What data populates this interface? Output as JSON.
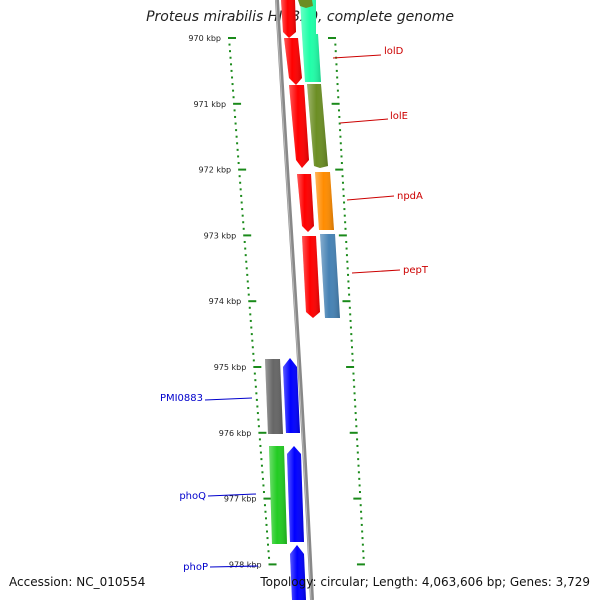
{
  "title": "Proteus mirabilis HI4320, complete genome",
  "footer": {
    "accession": "Accession: NC_010554",
    "topology": "Topology: circular; Length: 4,063,606 bp; Genes: 3,729"
  },
  "colors": {
    "tick": "#1a8a1a",
    "backbone": "#888888",
    "lolD": "#1fffa8",
    "lolE": "#6b8e23",
    "red": "#ff0000",
    "npdA": "#ff8c00",
    "pepT": "#4682b4",
    "PMI0883": "#666666",
    "phoQ": "#22cc22",
    "phoP": "#0000ff",
    "labelRed": "#cc0000",
    "labelBlue": "#0000cc"
  },
  "ticks": {
    "unit": "kbp",
    "major": [
      "970 kbp",
      "971 kbp",
      "972 kbp",
      "973 kbp",
      "974 kbp",
      "975 kbp",
      "976 kbp",
      "977 kbp",
      "978 kbp"
    ]
  },
  "gene_labels": [
    {
      "name": "lolD",
      "side": "right",
      "color": "labelRed"
    },
    {
      "name": "lolE",
      "side": "right",
      "color": "labelRed"
    },
    {
      "name": "npdA",
      "side": "right",
      "color": "labelRed"
    },
    {
      "name": "pepT",
      "side": "right",
      "color": "labelRed"
    },
    {
      "name": "PMI0883",
      "side": "left",
      "color": "labelBlue"
    },
    {
      "name": "phoQ",
      "side": "left",
      "color": "labelBlue"
    },
    {
      "name": "phoP",
      "side": "left",
      "color": "labelBlue"
    }
  ]
}
